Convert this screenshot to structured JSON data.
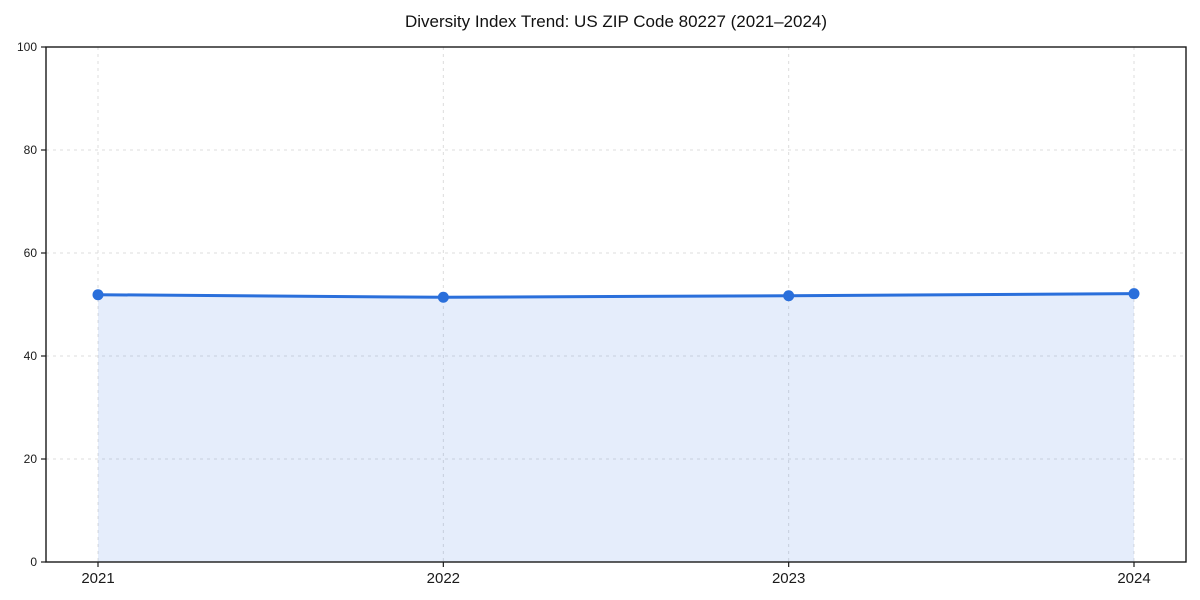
{
  "chart_data": {
    "type": "line",
    "title": "Diversity Index Trend: US ZIP Code 80227 (2021–2024)",
    "x": [
      2021,
      2022,
      2023,
      2024
    ],
    "series": [
      {
        "name": "Diversity Index",
        "values": [
          51.9,
          51.4,
          51.7,
          52.1
        ]
      }
    ],
    "xlabel": "",
    "ylabel": "",
    "ylim": [
      0,
      100
    ],
    "yticks": [
      0,
      20,
      40,
      60,
      80,
      100
    ],
    "xtick_labels": [
      "2021",
      "2022",
      "2023",
      "2024"
    ],
    "grid": true,
    "grid_style": "dashed",
    "legend_position": "none",
    "colors": {
      "line": "#2a6fdb",
      "marker": "#2a6fdb",
      "area_fill": "#2a6fdb",
      "area_opacity": 0.12,
      "grid": "#dcdcdc",
      "spine": "#1a1a1a",
      "background": "#ffffff",
      "tick_text": "#1a1a1a"
    }
  }
}
